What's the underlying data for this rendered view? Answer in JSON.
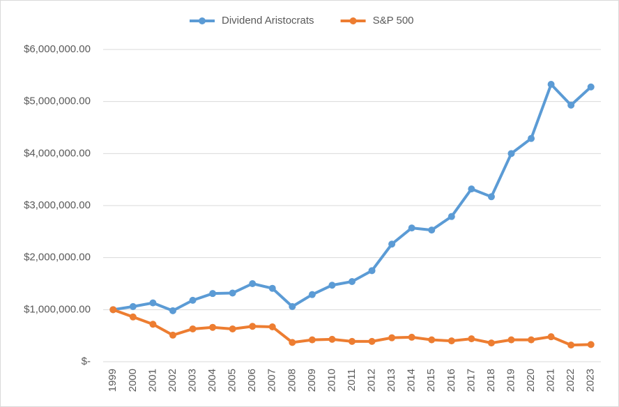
{
  "chart_data": {
    "type": "line",
    "categories": [
      "1999",
      "2000",
      "2001",
      "2002",
      "2003",
      "2004",
      "2005",
      "2006",
      "2007",
      "2008",
      "2009",
      "2010",
      "2011",
      "2012",
      "2013",
      "2014",
      "2015",
      "2016",
      "2017",
      "2018",
      "2019",
      "2020",
      "2021",
      "2022",
      "2023"
    ],
    "series": [
      {
        "name": "Dividend Aristocrats",
        "color": "#5b9bd5",
        "values": [
          1000000,
          1060000,
          1130000,
          980000,
          1180000,
          1310000,
          1320000,
          1500000,
          1410000,
          1060000,
          1290000,
          1470000,
          1540000,
          1750000,
          2260000,
          2570000,
          2530000,
          2790000,
          3320000,
          3170000,
          4000000,
          4290000,
          5330000,
          4930000,
          5280000
        ]
      },
      {
        "name": "S&P 500",
        "color": "#ed7d31",
        "values": [
          1000000,
          860000,
          720000,
          510000,
          630000,
          660000,
          630000,
          680000,
          670000,
          370000,
          420000,
          430000,
          390000,
          390000,
          460000,
          470000,
          420000,
          400000,
          440000,
          360000,
          420000,
          420000,
          480000,
          320000,
          330000
        ]
      }
    ],
    "ylim": [
      0,
      6000000
    ],
    "yticks": [
      {
        "value": 0,
        "label": "$-"
      },
      {
        "value": 1000000,
        "label": "$1,000,000.00"
      },
      {
        "value": 2000000,
        "label": "$2,000,000.00"
      },
      {
        "value": 3000000,
        "label": "$3,000,000.00"
      },
      {
        "value": 4000000,
        "label": "$4,000,000.00"
      },
      {
        "value": 5000000,
        "label": "$5,000,000.00"
      },
      {
        "value": 6000000,
        "label": "$6,000,000.00"
      }
    ],
    "grid": true,
    "legend": "top"
  }
}
